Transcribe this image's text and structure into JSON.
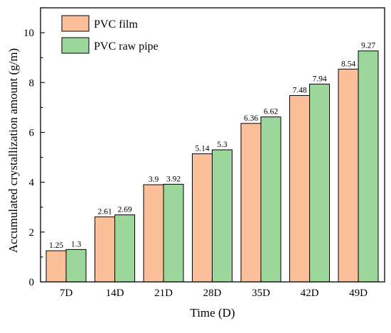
{
  "chart_data": {
    "type": "bar",
    "xlabel": "Time (D)",
    "ylabel": "Accumulated crystallization amount (g/m)",
    "categories": [
      "7D",
      "14D",
      "21D",
      "28D",
      "35D",
      "42D",
      "49D"
    ],
    "series": [
      {
        "name": "PVC film",
        "color": "#FBC09A",
        "values": [
          1.25,
          2.61,
          3.9,
          5.14,
          6.36,
          7.48,
          8.54
        ],
        "labels": [
          "1.25",
          "2.61",
          "3.9",
          "5.14",
          "6.36",
          "7.48",
          "8.54"
        ]
      },
      {
        "name": "PVC raw pipe",
        "color": "#9BD69B",
        "values": [
          1.3,
          2.69,
          3.92,
          5.3,
          6.62,
          7.94,
          9.27
        ],
        "labels": [
          "1.3",
          "2.69",
          "3.92",
          "5.3",
          "6.62",
          "7.94",
          "9.27"
        ]
      }
    ],
    "ylim": [
      0,
      11
    ],
    "yticks": [
      0,
      2,
      4,
      6,
      8,
      10
    ],
    "legend_position": "top-left",
    "grid": false
  }
}
